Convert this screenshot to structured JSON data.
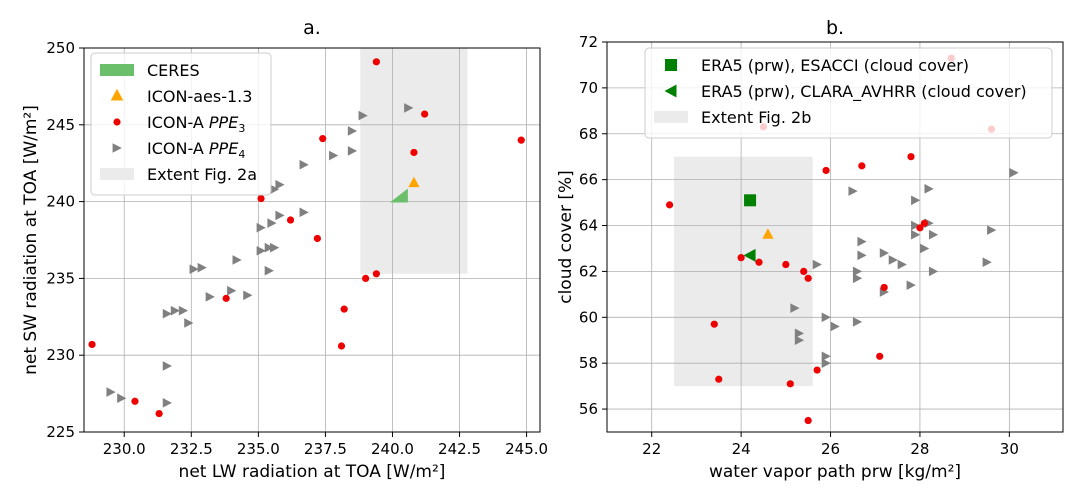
{
  "chart_data": [
    {
      "type": "scatter",
      "title": "a.",
      "xlabel": "net LW radiation at TOA [W/m²]",
      "ylabel": "net SW radiation at TOA [W/m²]",
      "xlim": [
        228.5,
        245.5
      ],
      "ylim": [
        225,
        250
      ],
      "xticks": [
        230.0,
        232.5,
        235.0,
        237.5,
        240.0,
        242.5,
        245.0
      ],
      "xtick_labels": [
        "230.0",
        "232.5",
        "235.0",
        "237.5",
        "240.0",
        "242.5",
        "245.0"
      ],
      "yticks": [
        225,
        230,
        235,
        240,
        245,
        250
      ],
      "ytick_labels": [
        "225",
        "230",
        "235",
        "240",
        "245",
        "250"
      ],
      "grid": true,
      "legend_position": "top-left",
      "colors": {
        "ceres": "#6bbf6b",
        "icon_aes": "#ffa500",
        "ppe3": "#ee0000",
        "ppe4": "#808080",
        "extent": "#ebebeb"
      },
      "legend": [
        {
          "key": "ceres",
          "label": "CERES"
        },
        {
          "key": "icon_aes",
          "label": "ICON-aes-1.3"
        },
        {
          "key": "ppe3",
          "label_main": "ICON-A ",
          "label_sub_base": "PPE",
          "label_sub": "3"
        },
        {
          "key": "ppe4",
          "label_main": "ICON-A ",
          "label_sub_base": "PPE",
          "label_sub": "4"
        },
        {
          "key": "extent",
          "label": "Extent Fig. 2a"
        }
      ],
      "extent_box": {
        "x": [
          238.8,
          242.8
        ],
        "y": [
          235.3,
          250
        ]
      },
      "ceres": {
        "x": 240.5,
        "y": 240.4
      },
      "icon_aes": {
        "x": 240.8,
        "y": 241.2
      },
      "ppe3": [
        [
          228.8,
          230.7
        ],
        [
          230.4,
          227.0
        ],
        [
          231.3,
          226.2
        ],
        [
          233.8,
          233.7
        ],
        [
          235.1,
          240.2
        ],
        [
          236.2,
          238.8
        ],
        [
          237.2,
          237.6
        ],
        [
          237.4,
          244.1
        ],
        [
          238.1,
          230.6
        ],
        [
          238.2,
          233.0
        ],
        [
          239.0,
          235.0
        ],
        [
          239.4,
          249.1
        ],
        [
          239.4,
          235.3
        ],
        [
          240.8,
          243.2
        ],
        [
          241.2,
          245.7
        ],
        [
          244.8,
          244.0
        ]
      ],
      "ppe4": [
        [
          229.5,
          227.6
        ],
        [
          229.9,
          227.2
        ],
        [
          231.6,
          226.9
        ],
        [
          231.6,
          232.7
        ],
        [
          231.6,
          229.3
        ],
        [
          231.9,
          232.9
        ],
        [
          232.2,
          232.9
        ],
        [
          232.4,
          232.1
        ],
        [
          232.6,
          235.6
        ],
        [
          232.9,
          235.7
        ],
        [
          233.2,
          233.8
        ],
        [
          234.0,
          234.2
        ],
        [
          234.2,
          236.2
        ],
        [
          234.6,
          233.9
        ],
        [
          235.1,
          236.8
        ],
        [
          235.1,
          238.3
        ],
        [
          235.4,
          235.5
        ],
        [
          235.4,
          237.0
        ],
        [
          235.5,
          238.6
        ],
        [
          235.6,
          240.8
        ],
        [
          235.6,
          237.0
        ],
        [
          235.8,
          239.1
        ],
        [
          235.8,
          241.1
        ],
        [
          236.7,
          239.3
        ],
        [
          236.7,
          242.4
        ],
        [
          237.8,
          243.0
        ],
        [
          238.5,
          244.6
        ],
        [
          238.5,
          243.3
        ],
        [
          238.9,
          245.6
        ],
        [
          240.6,
          246.1
        ]
      ]
    },
    {
      "type": "scatter",
      "title": "b.",
      "xlabel": "water vapor path prw [kg/m²]",
      "ylabel": "cloud cover [%]",
      "xlim": [
        21,
        31.2
      ],
      "ylim": [
        55,
        72
      ],
      "xticks": [
        22,
        24,
        26,
        28,
        30
      ],
      "xtick_labels": [
        "22",
        "24",
        "26",
        "28",
        "30"
      ],
      "yticks": [
        56,
        58,
        60,
        62,
        64,
        66,
        68,
        70,
        72
      ],
      "ytick_labels": [
        "56",
        "58",
        "60",
        "62",
        "64",
        "66",
        "68",
        "70",
        "72"
      ],
      "grid": true,
      "legend_position": "top-center",
      "colors": {
        "esacci": "#008000",
        "clara": "#008000",
        "icon_aes": "#ffa500",
        "ppe3": "#ee0000",
        "ppe4": "#808080",
        "extent": "#ebebeb"
      },
      "legend": [
        {
          "key": "esacci",
          "label": "ERA5 (prw), ESACCI (cloud cover)"
        },
        {
          "key": "clara",
          "label": "ERA5 (prw), CLARA_AVHRR (cloud cover)"
        },
        {
          "key": "extent",
          "label": "Extent Fig. 2b"
        }
      ],
      "extent_box": {
        "x": [
          22.5,
          25.6
        ],
        "y": [
          57.0,
          67.0
        ]
      },
      "esacci": {
        "x": 24.2,
        "y": 65.1
      },
      "clara": {
        "x": 24.2,
        "y": 62.7
      },
      "icon_aes": {
        "x": 24.6,
        "y": 63.6
      },
      "ppe3": [
        [
          22.4,
          64.9
        ],
        [
          23.4,
          59.7
        ],
        [
          23.5,
          57.3
        ],
        [
          24.0,
          62.6
        ],
        [
          24.4,
          62.4
        ],
        [
          24.5,
          68.3
        ],
        [
          25.0,
          62.3
        ],
        [
          25.1,
          57.1
        ],
        [
          25.4,
          62.0
        ],
        [
          25.5,
          61.7
        ],
        [
          25.5,
          55.5
        ],
        [
          25.7,
          57.7
        ],
        [
          25.9,
          66.4
        ],
        [
          26.7,
          66.6
        ],
        [
          27.1,
          58.3
        ],
        [
          27.2,
          61.3
        ],
        [
          27.8,
          67.0
        ],
        [
          28.0,
          63.9
        ],
        [
          28.1,
          64.1
        ],
        [
          28.7,
          71.3
        ],
        [
          29.6,
          68.2
        ]
      ],
      "ppe4": [
        [
          25.7,
          62.3
        ],
        [
          25.9,
          58.3
        ],
        [
          25.9,
          60.0
        ],
        [
          25.9,
          58.0
        ],
        [
          26.1,
          59.6
        ],
        [
          26.5,
          65.5
        ],
        [
          26.6,
          62.0
        ],
        [
          26.6,
          61.7
        ],
        [
          26.6,
          59.8
        ],
        [
          26.7,
          63.3
        ],
        [
          26.7,
          62.7
        ],
        [
          27.2,
          62.8
        ],
        [
          27.2,
          61.1
        ],
        [
          27.4,
          62.5
        ],
        [
          27.6,
          62.3
        ],
        [
          27.8,
          61.4
        ],
        [
          27.9,
          63.6
        ],
        [
          27.9,
          65.1
        ],
        [
          27.9,
          64.0
        ],
        [
          28.1,
          63.0
        ],
        [
          28.2,
          64.1
        ],
        [
          28.2,
          65.6
        ],
        [
          28.3,
          62.0
        ],
        [
          28.3,
          63.6
        ],
        [
          29.5,
          62.4
        ],
        [
          29.6,
          63.8
        ],
        [
          30.1,
          66.3
        ],
        [
          25.2,
          60.4
        ],
        [
          25.3,
          59.0
        ],
        [
          25.3,
          59.3
        ]
      ]
    }
  ]
}
